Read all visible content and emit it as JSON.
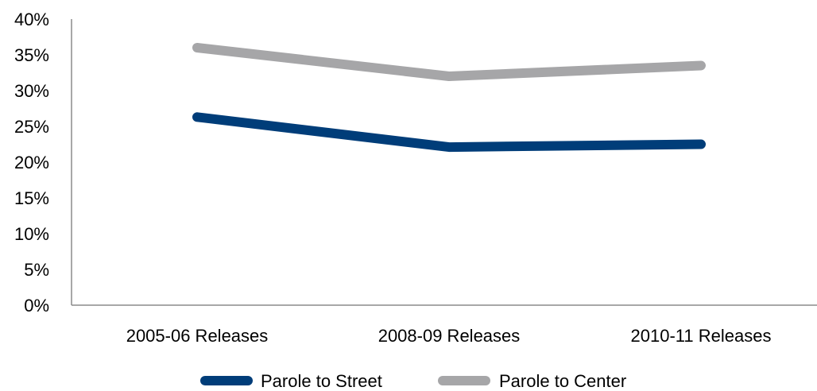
{
  "chart_data": {
    "type": "line",
    "title": "",
    "xlabel": "",
    "ylabel": "",
    "categories": [
      "2005-06 Releases",
      "2008-09 Releases",
      "2010-11 Releases"
    ],
    "series": [
      {
        "name": "Parole to Street",
        "color": "#003d79",
        "values": [
          26.3,
          22.1,
          22.5
        ]
      },
      {
        "name": "Parole to Center",
        "color": "#a6a6a8",
        "values": [
          36.0,
          32.0,
          33.5
        ]
      }
    ],
    "ylim": [
      0,
      40
    ],
    "yticks": [
      0,
      5,
      10,
      15,
      20,
      25,
      30,
      35,
      40
    ],
    "ytick_labels": [
      "0%",
      "5%",
      "10%",
      "15%",
      "20%",
      "25%",
      "30%",
      "35%",
      "40%"
    ],
    "grid": false,
    "legend_position": "bottom"
  }
}
